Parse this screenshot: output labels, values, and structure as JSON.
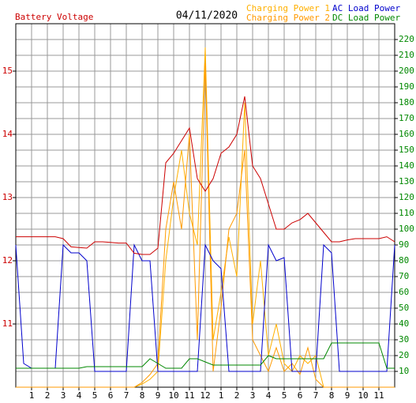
{
  "chart_data": {
    "type": "line",
    "title": "04/11/2020",
    "y_label": "Battery Voltage",
    "x": [
      0,
      0.5,
      1,
      1.5,
      2,
      2.5,
      3,
      3.5,
      4,
      4.5,
      5,
      5.5,
      6,
      6.5,
      7,
      7.5,
      8,
      8.5,
      9,
      9.5,
      10,
      10.5,
      11,
      11.5,
      12,
      12.5,
      13,
      13.5,
      14,
      14.5,
      15,
      15.5,
      16,
      16.5,
      17,
      17.5,
      18,
      18.5,
      19,
      19.5,
      20,
      20.5,
      21,
      21.5,
      22,
      22.5,
      23,
      23.5,
      24
    ],
    "xlim": [
      0,
      24
    ],
    "xticks": [
      1,
      2,
      3,
      4,
      5,
      6,
      7,
      8,
      9,
      10,
      11,
      12,
      {
        "value": 13,
        "label": "1"
      },
      {
        "value": 14,
        "label": "2"
      },
      {
        "value": 15,
        "label": "3"
      },
      {
        "value": 16,
        "label": "4"
      },
      {
        "value": 17,
        "label": "5"
      },
      {
        "value": 18,
        "label": "6"
      },
      {
        "value": 19,
        "label": "7"
      },
      {
        "value": 20,
        "label": "8"
      },
      {
        "value": 21,
        "label": "9"
      },
      {
        "value": 22,
        "label": "10"
      },
      {
        "value": 23,
        "label": "11"
      }
    ],
    "ylim": [
      10,
      15.75
    ],
    "yticks": [
      11,
      12,
      13,
      14,
      15
    ],
    "y2lim": [
      0,
      230
    ],
    "y2ticks": [
      10,
      20,
      30,
      40,
      50,
      60,
      70,
      80,
      90,
      100,
      110,
      120,
      130,
      140,
      150,
      160,
      170,
      180,
      190,
      200,
      210,
      220
    ],
    "grid": true,
    "series": [
      {
        "name": "Charging Power 1",
        "color": "#ffb000",
        "axis": "y2",
        "values": [
          0,
          0,
          0,
          0,
          0,
          0,
          0,
          0,
          0,
          0,
          0,
          0,
          0,
          0,
          0,
          0,
          2,
          5,
          10,
          80,
          120,
          150,
          110,
          90,
          215,
          30,
          60,
          95,
          70,
          180,
          40,
          80,
          20,
          40,
          15,
          10,
          20,
          15,
          20,
          0,
          0,
          0,
          0,
          0,
          0,
          0,
          0,
          0,
          0
        ]
      },
      {
        "name": "Charging Power 2",
        "color": "#ff9a00",
        "axis": "y2",
        "values": [
          0,
          0,
          0,
          0,
          0,
          0,
          0,
          0,
          0,
          0,
          0,
          0,
          0,
          0,
          0,
          0,
          3,
          8,
          15,
          100,
          130,
          100,
          160,
          30,
          205,
          10,
          50,
          100,
          110,
          150,
          30,
          20,
          10,
          25,
          10,
          15,
          8,
          25,
          5,
          0,
          0,
          0,
          0,
          0,
          0,
          0,
          0,
          0,
          0
        ]
      },
      {
        "name": "AC Load Power",
        "color": "#0000cc",
        "axis": "y2",
        "values": [
          90,
          15,
          12,
          12,
          12,
          12,
          90,
          85,
          85,
          80,
          10,
          10,
          10,
          10,
          10,
          90,
          80,
          80,
          10,
          10,
          10,
          10,
          10,
          10,
          90,
          80,
          75,
          10,
          10,
          10,
          10,
          10,
          90,
          80,
          82,
          10,
          10,
          10,
          10,
          90,
          85,
          10,
          10,
          10,
          10,
          10,
          10,
          10,
          90
        ]
      },
      {
        "name": "DC Load Power",
        "color": "#008800",
        "axis": "y2",
        "values": [
          12,
          12,
          12,
          12,
          12,
          12,
          12,
          12,
          12,
          13,
          13,
          13,
          13,
          13,
          13,
          13,
          13,
          18,
          15,
          12,
          12,
          12,
          18,
          18,
          16,
          14,
          14,
          14,
          14,
          14,
          14,
          14,
          20,
          18,
          18,
          18,
          18,
          18,
          18,
          18,
          28,
          28,
          28,
          28,
          28,
          28,
          28,
          12,
          12
        ]
      },
      {
        "name": "Battery Voltage",
        "color": "#cc0000",
        "values": [
          12.38,
          12.38,
          12.38,
          12.38,
          12.38,
          12.38,
          12.35,
          12.22,
          12.21,
          12.2,
          12.3,
          12.3,
          12.29,
          12.28,
          12.28,
          12.12,
          12.1,
          12.1,
          12.2,
          13.55,
          13.7,
          13.9,
          14.1,
          13.3,
          13.1,
          13.3,
          13.7,
          13.8,
          14.0,
          14.6,
          13.5,
          13.3,
          12.9,
          12.5,
          12.5,
          12.6,
          12.65,
          12.75,
          12.6,
          12.45,
          12.3,
          12.3,
          12.33,
          12.35,
          12.35,
          12.35,
          12.35,
          12.38,
          12.3
        ]
      }
    ]
  }
}
